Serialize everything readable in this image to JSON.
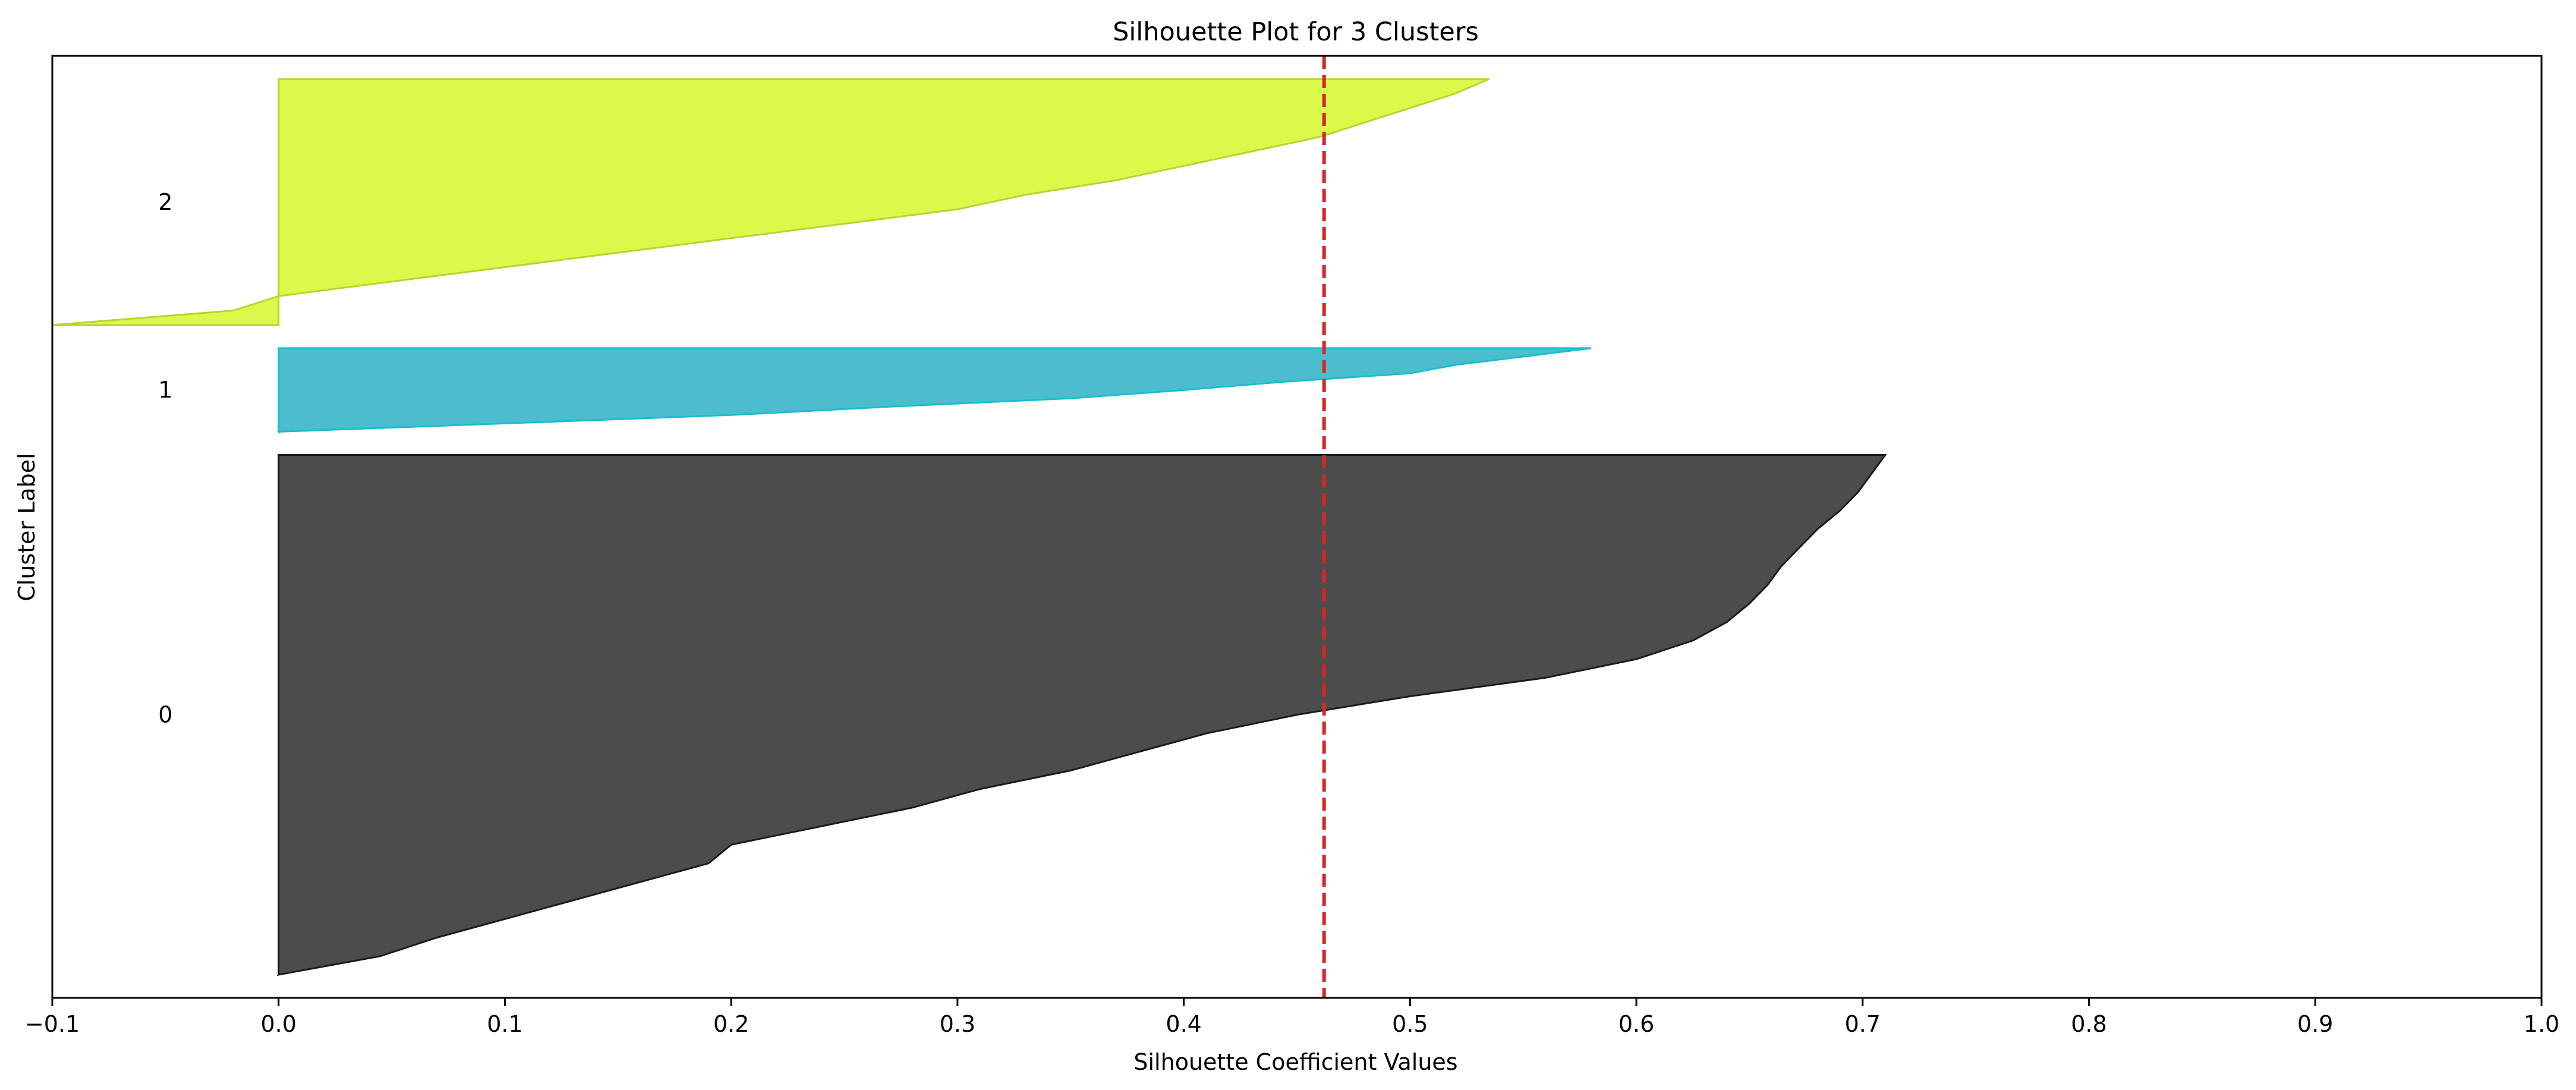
{
  "chart_data": {
    "type": "area",
    "title": "Silhouette Plot for 3 Clusters",
    "xlabel": "Silhouette Coefficient Values",
    "ylabel": "Cluster Label",
    "xlim": [
      -0.1,
      1.0
    ],
    "xticks": [
      -0.1,
      0.0,
      0.1,
      0.2,
      0.3,
      0.4,
      0.5,
      0.6,
      0.7,
      0.8,
      0.9,
      1.0
    ],
    "xtick_labels": [
      "−0.1",
      "0.0",
      "0.1",
      "0.2",
      "0.3",
      "0.4",
      "0.5",
      "0.6",
      "0.7",
      "0.8",
      "0.9",
      "1.0"
    ],
    "yticks": [],
    "average_silhouette": 0.462,
    "average_line_color": "#d62728",
    "grid": false,
    "gap": 10,
    "clusters": [
      {
        "label": "0",
        "color": "#4c4c4c",
        "edge": "#1a1a1a",
        "size": 224,
        "sorted_values": [
          0.0,
          0.045,
          0.07,
          0.1,
          0.13,
          0.16,
          0.19,
          0.2,
          0.24,
          0.28,
          0.31,
          0.35,
          0.38,
          0.41,
          0.45,
          0.5,
          0.56,
          0.6,
          0.625,
          0.64,
          0.65,
          0.658,
          0.664,
          0.672,
          0.68,
          0.69,
          0.698,
          0.704,
          0.71
        ]
      },
      {
        "label": "1",
        "color": "#4cbdcd",
        "edge": "#17becf",
        "size": 36,
        "sorted_values": [
          0.0,
          0.1,
          0.2,
          0.27,
          0.35,
          0.4,
          0.445,
          0.5,
          0.52,
          0.55,
          0.58
        ]
      },
      {
        "label": "2",
        "color": "#dbf94a",
        "edge": "#bcd22b",
        "size": 106,
        "sorted_values": [
          -0.1,
          -0.02,
          0.0,
          0.05,
          0.1,
          0.15,
          0.2,
          0.25,
          0.3,
          0.33,
          0.37,
          0.4,
          0.43,
          0.46,
          0.48,
          0.5,
          0.52,
          0.535
        ]
      }
    ]
  }
}
